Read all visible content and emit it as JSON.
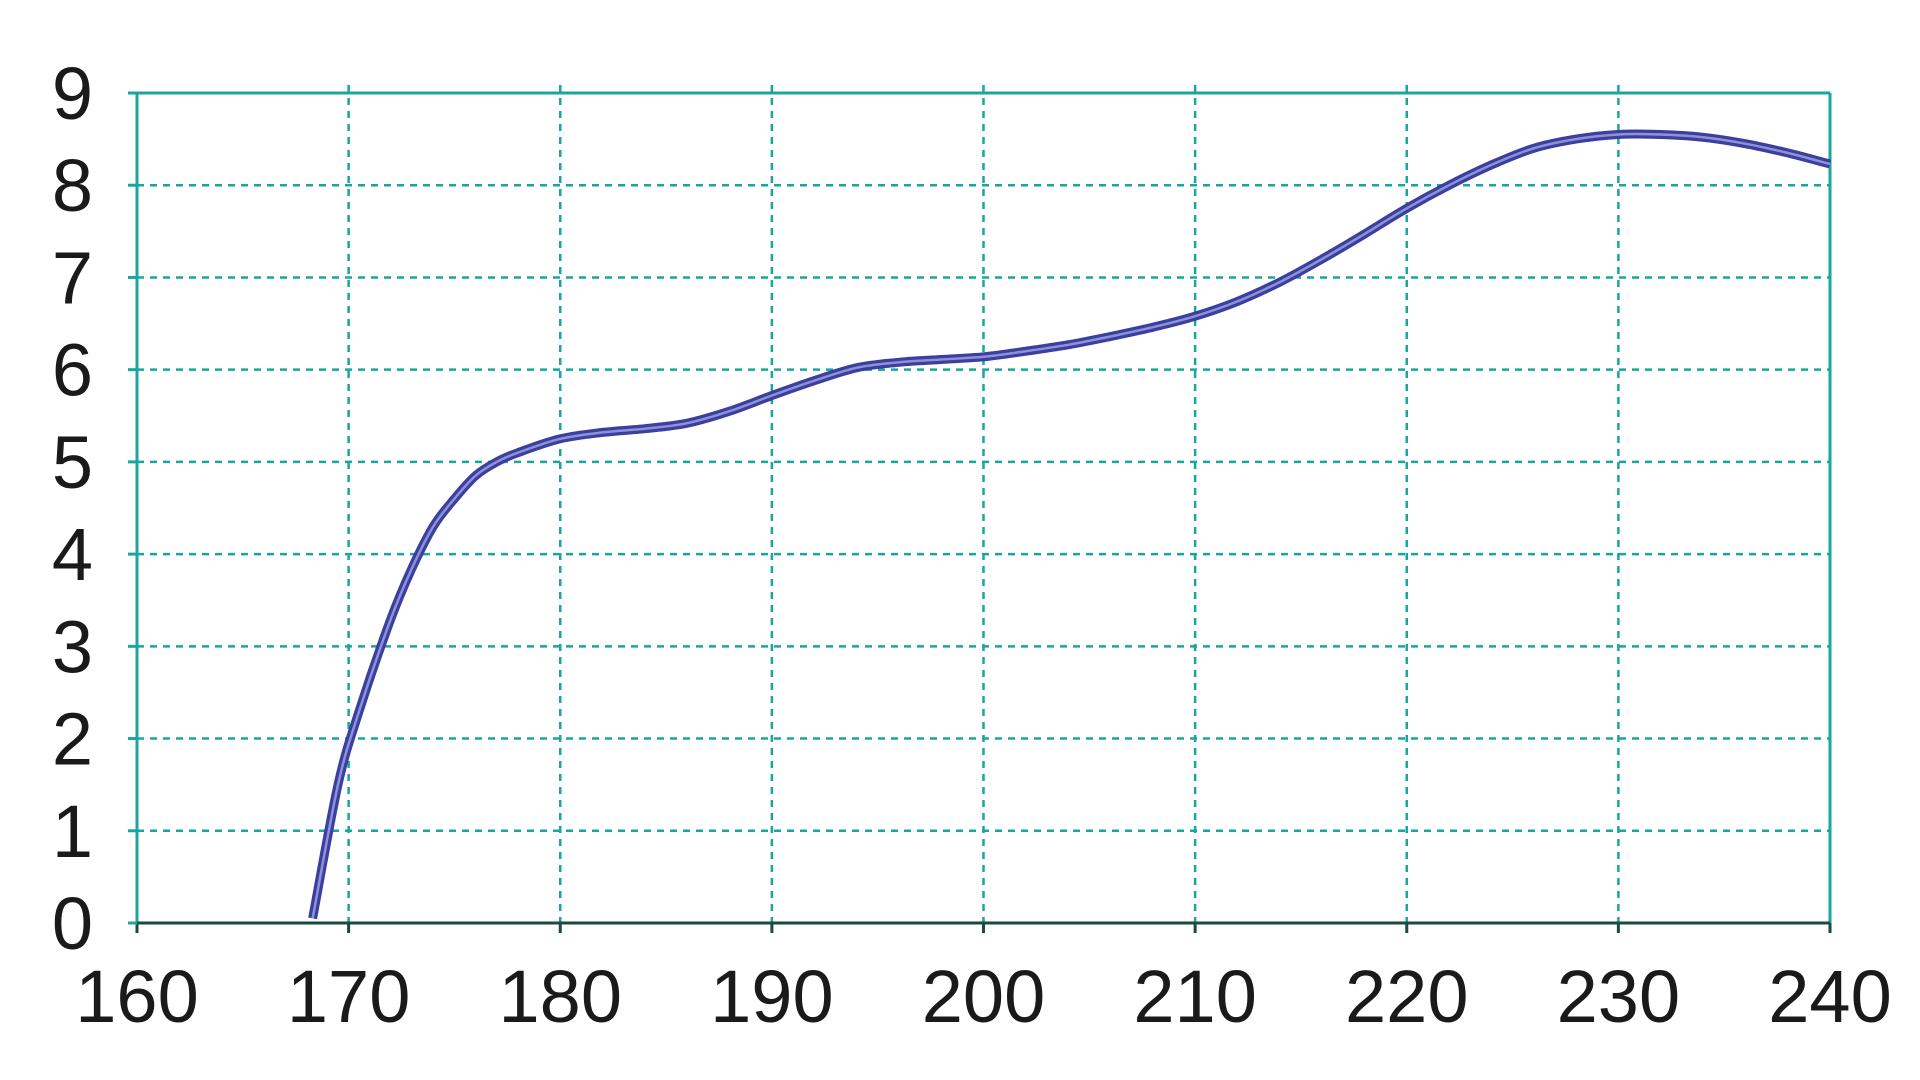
{
  "chart_data": {
    "type": "line",
    "title": "",
    "xlabel": "",
    "ylabel": "",
    "xlim": [
      160,
      240
    ],
    "ylim": [
      0,
      9
    ],
    "x_ticks": [
      "160",
      "170",
      "180",
      "190",
      "200",
      "210",
      "220",
      "230",
      "240"
    ],
    "y_ticks": [
      "0",
      "1",
      "2",
      "3",
      "4",
      "5",
      "6",
      "7",
      "8",
      "9"
    ],
    "grid": true,
    "legend": "none",
    "series": [
      {
        "x": [
          168.3,
          169.5,
          170.5,
          172,
          173,
          174,
          175,
          176,
          177,
          178,
          180,
          182,
          184,
          186,
          188,
          190,
          192,
          194,
          196,
          198,
          200,
          202,
          204,
          206,
          208,
          210,
          212,
          214,
          216,
          218,
          220,
          222,
          224,
          226,
          228,
          230,
          232,
          234,
          236,
          238,
          240
        ],
        "y": [
          0.05,
          1.5,
          2.3,
          3.3,
          3.85,
          4.3,
          4.6,
          4.85,
          5.0,
          5.1,
          5.25,
          5.32,
          5.36,
          5.42,
          5.55,
          5.72,
          5.88,
          6.02,
          6.08,
          6.11,
          6.14,
          6.2,
          6.27,
          6.36,
          6.46,
          6.58,
          6.74,
          6.95,
          7.2,
          7.47,
          7.75,
          8.0,
          8.22,
          8.4,
          8.5,
          8.55,
          8.55,
          8.52,
          8.45,
          8.35,
          8.23
        ]
      }
    ],
    "colors": {
      "series": "#3b3f9e",
      "series_highlight": "#8d92d8",
      "grid": "#1aa5a0",
      "frame": "#1aa5a0",
      "x_axis": "#1a4a40",
      "text": "#1a1a1a",
      "background": "#ffffff"
    }
  }
}
